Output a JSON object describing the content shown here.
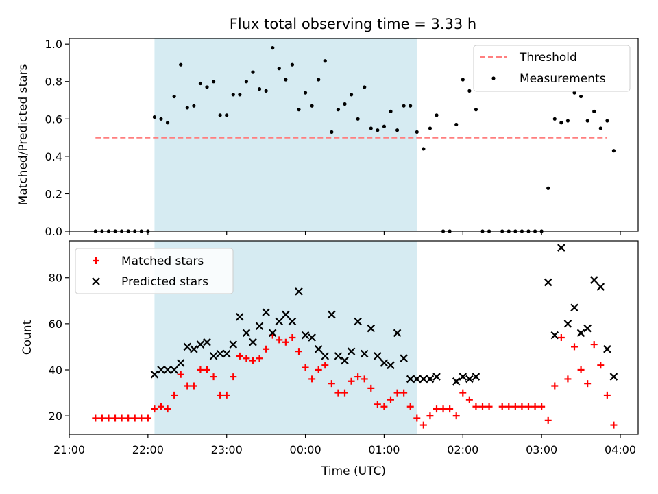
{
  "title": "Flux total observing time = 3.33 h",
  "chart_data": [
    {
      "type": "scatter",
      "ylabel": "Matched/Predicted stars",
      "ylim": [
        0,
        1.03
      ],
      "yticks": [
        0.0,
        0.2,
        0.4,
        0.6,
        0.8,
        1.0
      ],
      "ytick_labels": [
        "0.0",
        "0.2",
        "0.4",
        "0.6",
        "0.8",
        "1.0"
      ],
      "grid": false,
      "legend_position": "top-right",
      "shaded_region": [
        "22:05",
        "01:25"
      ],
      "threshold": {
        "name": "Threshold",
        "value": 0.5,
        "x_range": [
          "21:20",
          "03:50"
        ],
        "color": "#ff7f7f"
      },
      "series": [
        {
          "name": "Measurements",
          "color": "#000000",
          "points": [
            [
              "21:20",
              0
            ],
            [
              "21:25",
              0
            ],
            [
              "21:30",
              0
            ],
            [
              "21:35",
              0
            ],
            [
              "21:40",
              0
            ],
            [
              "21:45",
              0
            ],
            [
              "21:50",
              0
            ],
            [
              "21:55",
              0
            ],
            [
              "22:00",
              0
            ],
            [
              "22:05",
              0.61
            ],
            [
              "22:10",
              0.6
            ],
            [
              "22:15",
              0.58
            ],
            [
              "22:20",
              0.72
            ],
            [
              "22:25",
              0.89
            ],
            [
              "22:30",
              0.66
            ],
            [
              "22:35",
              0.67
            ],
            [
              "22:40",
              0.79
            ],
            [
              "22:45",
              0.77
            ],
            [
              "22:50",
              0.8
            ],
            [
              "22:55",
              0.62
            ],
            [
              "23:00",
              0.62
            ],
            [
              "23:05",
              0.73
            ],
            [
              "23:10",
              0.73
            ],
            [
              "23:15",
              0.8
            ],
            [
              "23:20",
              0.85
            ],
            [
              "23:25",
              0.76
            ],
            [
              "23:30",
              0.75
            ],
            [
              "23:35",
              0.98
            ],
            [
              "23:40",
              0.87
            ],
            [
              "23:45",
              0.81
            ],
            [
              "23:50",
              0.89
            ],
            [
              "23:55",
              0.65
            ],
            [
              "00:00",
              0.74
            ],
            [
              "00:05",
              0.67
            ],
            [
              "00:10",
              0.81
            ],
            [
              "00:15",
              0.91
            ],
            [
              "00:20",
              0.53
            ],
            [
              "00:25",
              0.65
            ],
            [
              "00:30",
              0.68
            ],
            [
              "00:35",
              0.73
            ],
            [
              "00:40",
              0.6
            ],
            [
              "00:45",
              0.77
            ],
            [
              "00:50",
              0.55
            ],
            [
              "00:55",
              0.54
            ],
            [
              "01:00",
              0.56
            ],
            [
              "01:05",
              0.64
            ],
            [
              "01:10",
              0.54
            ],
            [
              "01:15",
              0.67
            ],
            [
              "01:20",
              0.67
            ],
            [
              "01:25",
              0.53
            ],
            [
              "01:30",
              0.44
            ],
            [
              "01:35",
              0.55
            ],
            [
              "01:40",
              0.62
            ],
            [
              "01:45",
              0
            ],
            [
              "01:50",
              0
            ],
            [
              "01:55",
              0.57
            ],
            [
              "02:00",
              0.81
            ],
            [
              "02:05",
              0.75
            ],
            [
              "02:10",
              0.65
            ],
            [
              "02:15",
              0
            ],
            [
              "02:20",
              0
            ],
            [
              "02:30",
              0
            ],
            [
              "02:35",
              0
            ],
            [
              "02:40",
              0
            ],
            [
              "02:45",
              0
            ],
            [
              "02:50",
              0
            ],
            [
              "02:55",
              0
            ],
            [
              "03:00",
              0
            ],
            [
              "03:05",
              0.23
            ],
            [
              "03:10",
              0.6
            ],
            [
              "03:15",
              0.58
            ],
            [
              "03:20",
              0.59
            ],
            [
              "03:25",
              0.74
            ],
            [
              "03:30",
              0.72
            ],
            [
              "03:35",
              0.59
            ],
            [
              "03:40",
              0.64
            ],
            [
              "03:45",
              0.55
            ],
            [
              "03:50",
              0.59
            ],
            [
              "03:55",
              0.43
            ]
          ]
        }
      ]
    },
    {
      "type": "scatter",
      "xlabel": "Time (UTC)",
      "ylabel": "Count",
      "ylim": [
        12,
        96
      ],
      "yticks": [
        20,
        40,
        60,
        80
      ],
      "ytick_labels": [
        "20",
        "40",
        "60",
        "80"
      ],
      "xticks": [
        "21:00",
        "22:00",
        "23:00",
        "00:00",
        "01:00",
        "02:00",
        "03:00",
        "04:00"
      ],
      "grid": false,
      "legend_position": "top-left",
      "shaded_region": [
        "22:05",
        "01:25"
      ],
      "series": [
        {
          "name": "Matched stars",
          "marker": "+",
          "color": "#ff0000",
          "points": [
            [
              "21:20",
              19
            ],
            [
              "21:25",
              19
            ],
            [
              "21:30",
              19
            ],
            [
              "21:35",
              19
            ],
            [
              "21:40",
              19
            ],
            [
              "21:45",
              19
            ],
            [
              "21:50",
              19
            ],
            [
              "21:55",
              19
            ],
            [
              "22:00",
              19
            ],
            [
              "22:05",
              23
            ],
            [
              "22:10",
              24
            ],
            [
              "22:15",
              23
            ],
            [
              "22:20",
              29
            ],
            [
              "22:25",
              38
            ],
            [
              "22:30",
              33
            ],
            [
              "22:35",
              33
            ],
            [
              "22:40",
              40
            ],
            [
              "22:45",
              40
            ],
            [
              "22:50",
              37
            ],
            [
              "22:55",
              29
            ],
            [
              "23:00",
              29
            ],
            [
              "23:05",
              37
            ],
            [
              "23:10",
              46
            ],
            [
              "23:15",
              45
            ],
            [
              "23:20",
              44
            ],
            [
              "23:25",
              45
            ],
            [
              "23:30",
              49
            ],
            [
              "23:35",
              55
            ],
            [
              "23:40",
              53
            ],
            [
              "23:45",
              52
            ],
            [
              "23:50",
              54
            ],
            [
              "23:55",
              48
            ],
            [
              "00:00",
              41
            ],
            [
              "00:05",
              36
            ],
            [
              "00:10",
              40
            ],
            [
              "00:15",
              42
            ],
            [
              "00:20",
              34
            ],
            [
              "00:25",
              30
            ],
            [
              "00:30",
              30
            ],
            [
              "00:35",
              35
            ],
            [
              "00:40",
              37
            ],
            [
              "00:45",
              36
            ],
            [
              "00:50",
              32
            ],
            [
              "00:55",
              25
            ],
            [
              "01:00",
              24
            ],
            [
              "01:05",
              27
            ],
            [
              "01:10",
              30
            ],
            [
              "01:15",
              30
            ],
            [
              "01:20",
              24
            ],
            [
              "01:25",
              19
            ],
            [
              "01:30",
              16
            ],
            [
              "01:35",
              20
            ],
            [
              "01:40",
              23
            ],
            [
              "01:45",
              23
            ],
            [
              "01:50",
              23
            ],
            [
              "01:55",
              20
            ],
            [
              "02:00",
              30
            ],
            [
              "02:05",
              27
            ],
            [
              "02:10",
              24
            ],
            [
              "02:15",
              24
            ],
            [
              "02:20",
              24
            ],
            [
              "02:30",
              24
            ],
            [
              "02:35",
              24
            ],
            [
              "02:40",
              24
            ],
            [
              "02:45",
              24
            ],
            [
              "02:50",
              24
            ],
            [
              "02:55",
              24
            ],
            [
              "03:00",
              24
            ],
            [
              "03:05",
              18
            ],
            [
              "03:10",
              33
            ],
            [
              "03:15",
              54
            ],
            [
              "03:20",
              36
            ],
            [
              "03:25",
              50
            ],
            [
              "03:30",
              40
            ],
            [
              "03:35",
              34
            ],
            [
              "03:40",
              51
            ],
            [
              "03:45",
              42
            ],
            [
              "03:50",
              29
            ],
            [
              "03:55",
              16
            ]
          ]
        },
        {
          "name": "Predicted stars",
          "marker": "x",
          "color": "#000000",
          "points": [
            [
              "22:05",
              38
            ],
            [
              "22:10",
              40
            ],
            [
              "22:15",
              40
            ],
            [
              "22:20",
              40
            ],
            [
              "22:25",
              43
            ],
            [
              "22:30",
              50
            ],
            [
              "22:35",
              49
            ],
            [
              "22:40",
              51
            ],
            [
              "22:45",
              52
            ],
            [
              "22:50",
              46
            ],
            [
              "22:55",
              47
            ],
            [
              "23:00",
              47
            ],
            [
              "23:05",
              51
            ],
            [
              "23:10",
              63
            ],
            [
              "23:15",
              56
            ],
            [
              "23:20",
              52
            ],
            [
              "23:25",
              59
            ],
            [
              "23:30",
              65
            ],
            [
              "23:35",
              56
            ],
            [
              "23:40",
              61
            ],
            [
              "23:45",
              64
            ],
            [
              "23:50",
              61
            ],
            [
              "23:55",
              74
            ],
            [
              "00:00",
              55
            ],
            [
              "00:05",
              54
            ],
            [
              "00:10",
              49
            ],
            [
              "00:15",
              46
            ],
            [
              "00:20",
              64
            ],
            [
              "00:25",
              46
            ],
            [
              "00:30",
              44
            ],
            [
              "00:35",
              48
            ],
            [
              "00:40",
              61
            ],
            [
              "00:45",
              47
            ],
            [
              "00:50",
              58
            ],
            [
              "00:55",
              46
            ],
            [
              "01:00",
              43
            ],
            [
              "01:05",
              42
            ],
            [
              "01:10",
              56
            ],
            [
              "01:15",
              45
            ],
            [
              "01:20",
              36
            ],
            [
              "01:25",
              36
            ],
            [
              "01:30",
              36
            ],
            [
              "01:35",
              36
            ],
            [
              "01:40",
              37
            ],
            [
              "01:55",
              35
            ],
            [
              "02:00",
              37
            ],
            [
              "02:05",
              36
            ],
            [
              "02:10",
              37
            ],
            [
              "03:05",
              78
            ],
            [
              "03:10",
              55
            ],
            [
              "03:15",
              93
            ],
            [
              "03:20",
              60
            ],
            [
              "03:25",
              67
            ],
            [
              "03:30",
              56
            ],
            [
              "03:35",
              58
            ],
            [
              "03:40",
              79
            ],
            [
              "03:45",
              76
            ],
            [
              "03:50",
              49
            ],
            [
              "03:55",
              37
            ]
          ]
        }
      ]
    }
  ]
}
